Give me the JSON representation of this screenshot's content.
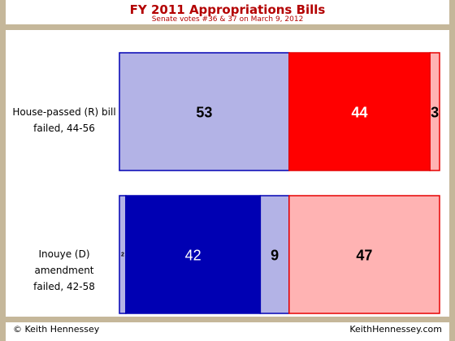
{
  "title": "FY 2011 Appropriations Bills",
  "subtitle": "Senate votes #36 & 37 on March 9, 2012",
  "footer_left": "© Keith Hennessey",
  "footer_right": "KeithHennessey.com",
  "colors": {
    "rep_yes": "#b3b3e6",
    "rep_no": "#ff0000",
    "dem_yes": "#0000b3",
    "dem_no": "#ffb3b3",
    "border_blue": "#0000b3",
    "border_red": "#e60000",
    "frame": "#c5b79a"
  },
  "chart_data": {
    "type": "bar",
    "stacked": true,
    "orientation": "horizontal",
    "total": 100,
    "rows": [
      {
        "label_line1": "House-passed (R) bill",
        "label_line2": "failed, 44-56",
        "segments": [
          {
            "value": 53,
            "label": "53",
            "color": "#b3b3e6",
            "border": "#0000b3",
            "text_color": "#000000"
          },
          {
            "value": 44,
            "label": "44",
            "color": "#ff0000",
            "border": "#e60000",
            "text_color": "#ffffff"
          },
          {
            "value": 3,
            "label": "3",
            "color": "#ffb3b3",
            "border": "#e60000",
            "text_color": "#000000"
          }
        ]
      },
      {
        "label_line1": "Inouye (D) amendment",
        "label_line2": "failed, 42-58",
        "segments": [
          {
            "value": 2,
            "label": "2",
            "color": "#b3b3e6",
            "border": "#0000b3",
            "text_color": "#000000"
          },
          {
            "value": 42,
            "label": "42",
            "color": "#0000b3",
            "border": "#0000b3",
            "text_color": "#ffffff"
          },
          {
            "value": 9,
            "label": "9",
            "color": "#b3b3e6",
            "border": "#0000b3",
            "text_color": "#000000"
          },
          {
            "value": 47,
            "label": "47",
            "color": "#ffb3b3",
            "border": "#e60000",
            "text_color": "#000000"
          }
        ]
      }
    ]
  }
}
